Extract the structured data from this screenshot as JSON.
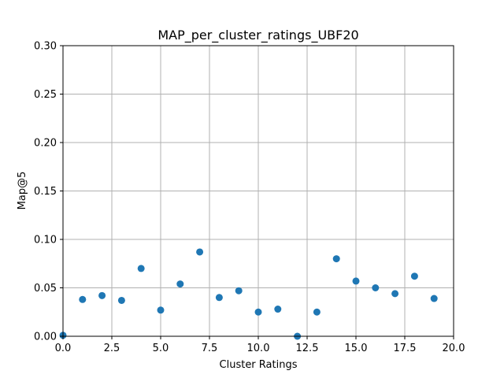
{
  "chart_data": {
    "type": "scatter",
    "title": "MAP_per_cluster_ratings_UBF20",
    "xlabel": "Cluster Ratings",
    "ylabel": "Map@5",
    "xlim": [
      0,
      20
    ],
    "ylim": [
      0,
      0.3
    ],
    "xticks": [
      "0.0",
      "2.5",
      "5.0",
      "7.5",
      "10.0",
      "12.5",
      "15.0",
      "17.5",
      "20.0"
    ],
    "yticks": [
      "0.00",
      "0.05",
      "0.10",
      "0.15",
      "0.20",
      "0.25",
      "0.30"
    ],
    "grid": true,
    "marker_color": "#1f77b4",
    "points": [
      {
        "x": 0,
        "y": 0.001
      },
      {
        "x": 1,
        "y": 0.038
      },
      {
        "x": 2,
        "y": 0.042
      },
      {
        "x": 3,
        "y": 0.037
      },
      {
        "x": 4,
        "y": 0.07
      },
      {
        "x": 5,
        "y": 0.027
      },
      {
        "x": 6,
        "y": 0.054
      },
      {
        "x": 7,
        "y": 0.087
      },
      {
        "x": 8,
        "y": 0.04
      },
      {
        "x": 9,
        "y": 0.047
      },
      {
        "x": 10,
        "y": 0.025
      },
      {
        "x": 11,
        "y": 0.028
      },
      {
        "x": 12,
        "y": 0.0
      },
      {
        "x": 13,
        "y": 0.025
      },
      {
        "x": 14,
        "y": 0.08
      },
      {
        "x": 15,
        "y": 0.057
      },
      {
        "x": 16,
        "y": 0.05
      },
      {
        "x": 17,
        "y": 0.044
      },
      {
        "x": 18,
        "y": 0.062
      },
      {
        "x": 19,
        "y": 0.039
      }
    ]
  }
}
